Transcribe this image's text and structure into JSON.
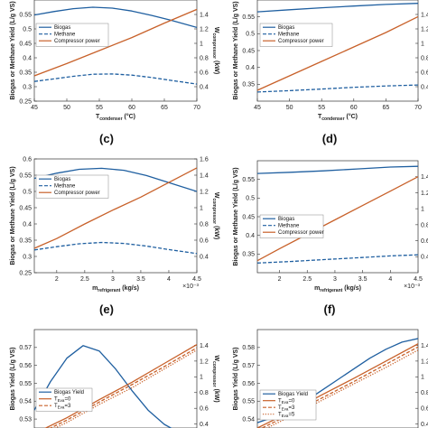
{
  "colors": {
    "blue": "#1f5fa0",
    "orange": "#c8612a",
    "frame": "#333333"
  },
  "panel_labels": [
    "(c)",
    "(d)",
    "(e)",
    "(f)"
  ],
  "chart_data": [
    {
      "id": "top-left",
      "type": "line",
      "xlim": [
        45,
        70
      ],
      "xticks": [
        "45",
        "50",
        "55",
        "60",
        "65",
        "70"
      ],
      "ylim": [
        0.25,
        0.6
      ],
      "yticks": [
        "0.25",
        "0.3",
        "0.35",
        "0.4",
        "0.45",
        "0.5",
        "0.55"
      ],
      "y2lim": [
        0.2,
        1.6
      ],
      "y2ticks": [
        "0.4",
        "0.6",
        "0.8",
        "1",
        "1.2",
        "1.4"
      ],
      "xlabel": "T",
      "xlabel_sub": "condenser",
      "xlabel_suffix": " (°C)",
      "ylabel": "Biogas or Methane Yield (L/g VS)",
      "y2label": "W",
      "y2label_sub": "compressor",
      "y2label_suffix": " (kW)",
      "legend": [
        "Biogas",
        "Methane",
        "Compressor power"
      ],
      "series": [
        {
          "name": "Biogas",
          "axis": "left",
          "style": "solid",
          "color": "blue",
          "x": [
            45,
            48,
            51,
            54,
            57,
            60,
            63,
            66,
            70
          ],
          "y": [
            0.548,
            0.56,
            0.57,
            0.575,
            0.572,
            0.562,
            0.547,
            0.53,
            0.505
          ]
        },
        {
          "name": "Methane",
          "axis": "left",
          "style": "dash",
          "color": "blue",
          "x": [
            45,
            48,
            51,
            54,
            57,
            60,
            63,
            66,
            70
          ],
          "y": [
            0.318,
            0.327,
            0.336,
            0.343,
            0.344,
            0.34,
            0.332,
            0.322,
            0.309
          ]
        },
        {
          "name": "Compressor power",
          "axis": "right",
          "style": "solid",
          "color": "orange",
          "x": [
            45,
            50,
            55,
            60,
            65,
            70
          ],
          "y": [
            0.55,
            0.72,
            0.9,
            1.08,
            1.28,
            1.47
          ]
        }
      ]
    },
    {
      "id": "top-right",
      "type": "line",
      "xlim": [
        45,
        70
      ],
      "xticks": [
        "45",
        "50",
        "55",
        "60",
        "65",
        "70"
      ],
      "ylim": [
        0.3,
        0.6
      ],
      "yticks": [
        "0.35",
        "0.4",
        "0.45",
        "0.5",
        "0.55"
      ],
      "y2lim": [
        0.2,
        1.6
      ],
      "y2ticks": [
        "0.4",
        "0.6",
        "0.8",
        "1",
        "1.2",
        "1.4"
      ],
      "xlabel": "T",
      "xlabel_sub": "condenser",
      "xlabel_suffix": " (°C)",
      "ylabel": "Biogas or Methane Yield (L/g VS)",
      "y2label": "W",
      "y2label_sub": "compressor",
      "y2label_suffix": " (kW)",
      "legend": [
        "Biogas",
        "Methane",
        "Compressor power"
      ],
      "series": [
        {
          "name": "Biogas",
          "axis": "left",
          "style": "solid",
          "color": "blue",
          "x": [
            45,
            50,
            55,
            60,
            65,
            70
          ],
          "y": [
            0.565,
            0.571,
            0.577,
            0.582,
            0.587,
            0.59
          ]
        },
        {
          "name": "Methane",
          "axis": "left",
          "style": "dash",
          "color": "blue",
          "x": [
            45,
            50,
            55,
            60,
            65,
            70
          ],
          "y": [
            0.327,
            0.331,
            0.336,
            0.341,
            0.345,
            0.348
          ]
        },
        {
          "name": "Compressor power",
          "axis": "right",
          "style": "solid",
          "color": "orange",
          "x": [
            45,
            50,
            55,
            60,
            65,
            70
          ],
          "y": [
            0.35,
            0.55,
            0.75,
            0.95,
            1.15,
            1.37
          ]
        }
      ]
    },
    {
      "id": "middle-left",
      "type": "line",
      "xlim": [
        1.6,
        4.5
      ],
      "xticks": [
        "2",
        "2.5",
        "3",
        "3.5",
        "4",
        "4.5"
      ],
      "xtick_values": [
        2,
        2.5,
        3,
        3.5,
        4,
        4.5
      ],
      "x_multiplier": "×10⁻³",
      "ylim": [
        0.25,
        0.6
      ],
      "yticks": [
        "0.25",
        "0.3",
        "0.35",
        "0.4",
        "0.45",
        "0.5",
        "0.55",
        "0.6"
      ],
      "y2lim": [
        0.2,
        1.6
      ],
      "y2ticks": [
        "0.4",
        "0.6",
        "0.8",
        "1",
        "1.2",
        "1.4",
        "1.6"
      ],
      "xlabel": "m",
      "xlabel_sub": "refrigerant",
      "xlabel_suffix": " (kg/s)",
      "ylabel": "Biogas or Methane Yield (L/g VS)",
      "y2label": "W",
      "y2label_sub": "compressor",
      "y2label_suffix": " (kW)",
      "legend": [
        "Biogas",
        "Methane",
        "Compressor power"
      ],
      "series": [
        {
          "name": "Biogas",
          "axis": "left",
          "style": "solid",
          "color": "blue",
          "x": [
            1.6,
            2.0,
            2.4,
            2.8,
            3.2,
            3.6,
            4.0,
            4.5
          ],
          "y": [
            0.54,
            0.556,
            0.568,
            0.571,
            0.565,
            0.549,
            0.527,
            0.5
          ]
        },
        {
          "name": "Methane",
          "axis": "left",
          "style": "dash",
          "color": "blue",
          "x": [
            1.6,
            2.0,
            2.4,
            2.8,
            3.2,
            3.6,
            4.0,
            4.5
          ],
          "y": [
            0.32,
            0.33,
            0.339,
            0.343,
            0.34,
            0.332,
            0.321,
            0.309
          ]
        },
        {
          "name": "Compressor power",
          "axis": "right",
          "style": "solid",
          "color": "orange",
          "x": [
            1.6,
            2.0,
            2.5,
            3.0,
            3.5,
            4.0,
            4.5
          ],
          "y": [
            0.5,
            0.62,
            0.8,
            0.97,
            1.13,
            1.31,
            1.49
          ]
        }
      ]
    },
    {
      "id": "middle-right",
      "type": "line",
      "xlim": [
        1.6,
        4.5
      ],
      "xticks": [
        "2",
        "2.5",
        "3",
        "3.5",
        "4",
        "4.5"
      ],
      "xtick_values": [
        2,
        2.5,
        3,
        3.5,
        4,
        4.5
      ],
      "x_multiplier": "×10⁻³",
      "ylim": [
        0.3,
        0.6
      ],
      "yticks": [
        "0.35",
        "0.4",
        "0.45",
        "0.5",
        "0.55"
      ],
      "y2lim": [
        0.2,
        1.6
      ],
      "y2ticks": [
        "0.4",
        "0.6",
        "0.8",
        "1",
        "1.2",
        "1.4"
      ],
      "xlabel": "m",
      "xlabel_sub": "refrigerant",
      "xlabel_suffix": " (kg/s)",
      "ylabel": "Biogas or Methane Yield (L/g VS)",
      "y2label": "W",
      "y2label_sub": "compressor",
      "y2label_suffix": " (kW)",
      "legend": [
        "Biogas",
        "Methane",
        "Compressor power"
      ],
      "series": [
        {
          "name": "Biogas",
          "axis": "left",
          "style": "solid",
          "color": "blue",
          "x": [
            1.6,
            2.2,
            2.8,
            3.4,
            4.0,
            4.5
          ],
          "y": [
            0.566,
            0.569,
            0.573,
            0.578,
            0.583,
            0.585
          ]
        },
        {
          "name": "Methane",
          "axis": "left",
          "style": "dash",
          "color": "blue",
          "x": [
            1.6,
            2.2,
            2.8,
            3.4,
            4.0,
            4.5
          ],
          "y": [
            0.326,
            0.33,
            0.335,
            0.34,
            0.345,
            0.348
          ]
        },
        {
          "name": "Compressor power",
          "axis": "right",
          "style": "solid",
          "color": "orange",
          "x": [
            1.6,
            2.0,
            2.5,
            3.0,
            3.5,
            4.0,
            4.5
          ],
          "y": [
            0.35,
            0.5,
            0.68,
            0.86,
            1.04,
            1.22,
            1.4
          ]
        }
      ]
    },
    {
      "id": "bottom-left",
      "type": "line",
      "xlim": [
        0,
        10
      ],
      "xticks": [],
      "xtick_values": [],
      "ylim": [
        0.525,
        0.58
      ],
      "yticks": [
        "0.53",
        "0.54",
        "0.55",
        "0.56",
        "0.57"
      ],
      "y2lim": [
        0.35,
        1.6
      ],
      "y2ticks": [
        "0.4",
        "0.6",
        "0.8",
        "1",
        "1.2",
        "1.4"
      ],
      "xlabel": "",
      "xlabel_sub": "",
      "xlabel_suffix": "",
      "ylabel": "Biogas Yield (L/g VS)",
      "y2label": "W",
      "y2label_sub": "compressor",
      "y2label_suffix": " (kW)",
      "legend": [
        "Biogas Yield",
        "T_Eva=0",
        "T_Eva=3"
      ],
      "legend_items": [
        {
          "main": "Biogas Yield",
          "sub": "",
          "tail": "",
          "style": "solid",
          "color": "blue"
        },
        {
          "main": "T",
          "sub": "Eva",
          "tail": "=0",
          "style": "solid",
          "color": "orange"
        },
        {
          "main": "T",
          "sub": "Eva",
          "tail": "=3",
          "style": "dash",
          "color": "orange"
        }
      ],
      "series": [
        {
          "name": "Biogas Yield",
          "axis": "left",
          "style": "solid",
          "color": "blue",
          "x": [
            0,
            1,
            2,
            3,
            4,
            5,
            6,
            7,
            8,
            9,
            10
          ],
          "y": [
            0.535,
            0.551,
            0.564,
            0.571,
            0.568,
            0.558,
            0.546,
            0.535,
            0.527,
            0.522,
            0.518
          ]
        },
        {
          "name": "T_Eva=0",
          "axis": "right",
          "style": "solid",
          "color": "orange",
          "x": [
            0,
            2,
            4,
            6,
            8,
            10
          ],
          "y": [
            0.28,
            0.48,
            0.71,
            0.93,
            1.17,
            1.41
          ]
        },
        {
          "name": "T_Eva=3",
          "axis": "right",
          "style": "dash",
          "color": "orange",
          "x": [
            0,
            2,
            4,
            6,
            8,
            10
          ],
          "y": [
            0.25,
            0.45,
            0.68,
            0.9,
            1.13,
            1.37
          ]
        },
        {
          "axis": "right",
          "style": "dot",
          "color": "orange",
          "x": [
            0,
            2,
            4,
            6,
            8,
            10
          ],
          "y": [
            0.22,
            0.42,
            0.65,
            0.86,
            1.1,
            1.34
          ]
        }
      ]
    },
    {
      "id": "bottom-right",
      "type": "line",
      "xlim": [
        0,
        10
      ],
      "xticks": [],
      "xtick_values": [],
      "ylim": [
        0.535,
        0.59
      ],
      "yticks": [
        "0.54",
        "0.55",
        "0.56",
        "0.57",
        "0.58"
      ],
      "y2lim": [
        0.35,
        1.6
      ],
      "y2ticks": [
        "0.4",
        "0.6",
        "0.8",
        "1",
        "1.2",
        "1.4"
      ],
      "xlabel": "",
      "xlabel_sub": "",
      "xlabel_suffix": "",
      "ylabel": "Biogas Yield (L/g VS)",
      "y2label": "W",
      "y2label_sub": "compressor",
      "y2label_suffix": " (kW)",
      "legend": [
        "Biogas Yield",
        "T_Eva=0",
        "T_Eva=3",
        "T_Eva=5"
      ],
      "legend_items": [
        {
          "main": "Biogas Yield",
          "sub": "",
          "tail": "",
          "style": "solid",
          "color": "blue"
        },
        {
          "main": "T",
          "sub": "Eva",
          "tail": "=0",
          "style": "solid",
          "color": "orange"
        },
        {
          "main": "T",
          "sub": "Eva",
          "tail": "=3",
          "style": "dash",
          "color": "orange"
        },
        {
          "main": "T",
          "sub": "Eva",
          "tail": "=5",
          "style": "dot",
          "color": "orange"
        }
      ],
      "series": [
        {
          "name": "Biogas Yield",
          "axis": "left",
          "style": "solid",
          "color": "blue",
          "x": [
            0,
            1,
            2,
            3,
            4,
            5,
            6,
            7,
            8,
            9,
            10
          ],
          "y": [
            0.538,
            0.541,
            0.545,
            0.55,
            0.556,
            0.562,
            0.568,
            0.574,
            0.579,
            0.583,
            0.585
          ]
        },
        {
          "name": "T_Eva=0",
          "axis": "right",
          "style": "solid",
          "color": "orange",
          "x": [
            0,
            2,
            4,
            6,
            8,
            10
          ],
          "y": [
            0.35,
            0.55,
            0.77,
            0.98,
            1.2,
            1.42
          ]
        },
        {
          "name": "T_Eva=3",
          "axis": "right",
          "style": "dash",
          "color": "orange",
          "x": [
            0,
            2,
            4,
            6,
            8,
            10
          ],
          "y": [
            0.32,
            0.52,
            0.73,
            0.94,
            1.16,
            1.38
          ]
        },
        {
          "name": "T_Eva=5",
          "axis": "right",
          "style": "dot",
          "color": "orange",
          "x": [
            0,
            2,
            4,
            6,
            8,
            10
          ],
          "y": [
            0.29,
            0.49,
            0.7,
            0.91,
            1.12,
            1.34
          ]
        }
      ]
    }
  ]
}
